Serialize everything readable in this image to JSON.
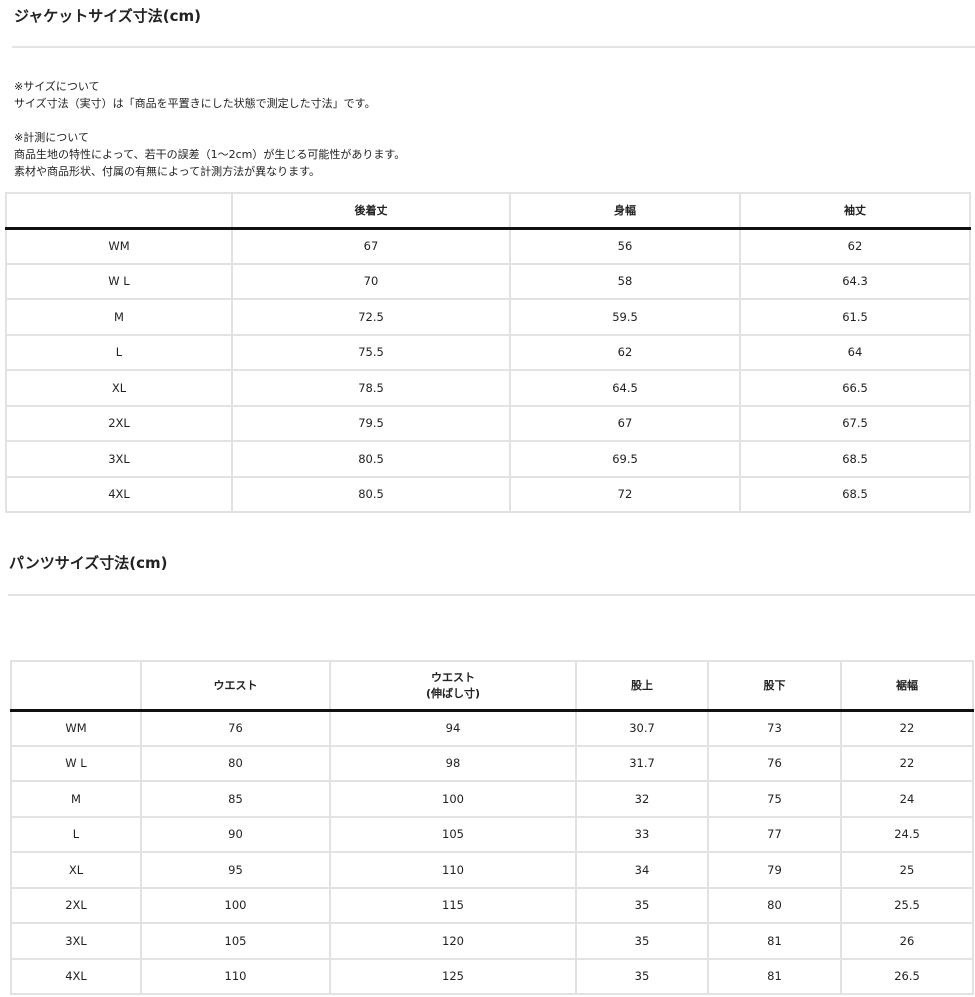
{
  "jacket": {
    "title": "ジャケットサイズ寸法(cm)",
    "notes": [
      "※サイズについて",
      "サイズ寸法（実寸）は「商品を平置きにした状態で測定した寸法」です。",
      "",
      "※計測について",
      "商品生地の特性によって、若干の誤差（1～2cm）が生じる可能性があります。",
      "素材や商品形状、付属の有無によって計測方法が異なります。"
    ],
    "headers": [
      "",
      "後着丈",
      "身幅",
      "袖丈"
    ],
    "rows": [
      [
        "WM",
        "67",
        "56",
        "62"
      ],
      [
        "W L",
        "70",
        "58",
        "64.3"
      ],
      [
        "M",
        "72.5",
        "59.5",
        "61.5"
      ],
      [
        "L",
        "75.5",
        "62",
        "64"
      ],
      [
        "XL",
        "78.5",
        "64.5",
        "66.5"
      ],
      [
        "2XL",
        "79.5",
        "67",
        "67.5"
      ],
      [
        "3XL",
        "80.5",
        "69.5",
        "68.5"
      ],
      [
        "4XL",
        "80.5",
        "72",
        "68.5"
      ]
    ]
  },
  "pants": {
    "title": "パンツサイズ寸法(cm)",
    "headers": [
      "",
      "ウエスト",
      "ウエスト\n(伸ばし寸)",
      "股上",
      "股下",
      "裾幅"
    ],
    "rows": [
      [
        "WM",
        "76",
        "94",
        "30.7",
        "73",
        "22"
      ],
      [
        "W L",
        "80",
        "98",
        "31.7",
        "76",
        "22"
      ],
      [
        "M",
        "85",
        "100",
        "32",
        "75",
        "24"
      ],
      [
        "L",
        "90",
        "105",
        "33",
        "77",
        "24.5"
      ],
      [
        "XL",
        "95",
        "110",
        "34",
        "79",
        "25"
      ],
      [
        "2XL",
        "100",
        "115",
        "35",
        "80",
        "25.5"
      ],
      [
        "3XL",
        "105",
        "120",
        "35",
        "81",
        "26"
      ],
      [
        "4XL",
        "110",
        "125",
        "35",
        "81",
        "26.5"
      ]
    ]
  }
}
